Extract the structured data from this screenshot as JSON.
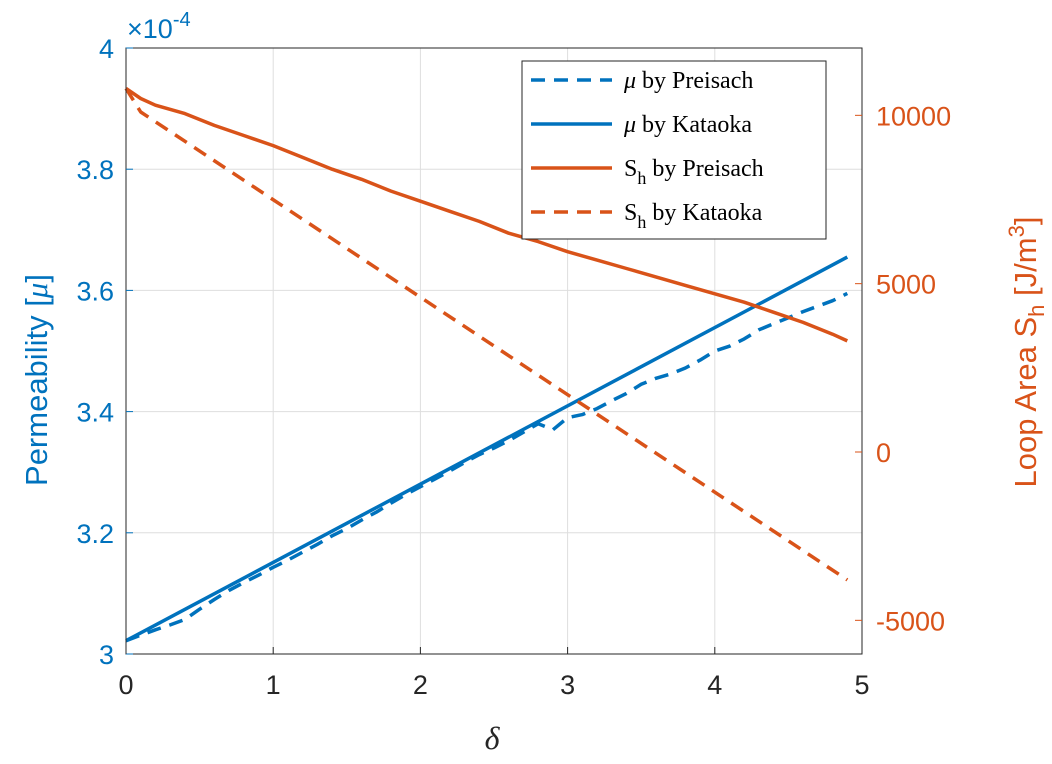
{
  "chart_data": {
    "type": "line",
    "xlabel": "δ",
    "xlim": [
      0,
      5
    ],
    "xticks": [
      "0",
      "1",
      "2",
      "3",
      "4",
      "5"
    ],
    "grid": true,
    "legend_position": "top-right",
    "left_axis": {
      "label_prefix": "Permeability [",
      "label_symbol": "μ",
      "label_suffix": "]",
      "ylim": [
        3.0,
        4.0
      ],
      "ticks": [
        "3",
        "3.2",
        "3.4",
        "3.6",
        "3.8",
        "4"
      ],
      "multiplier_base": "×10",
      "multiplier_exp": "-4",
      "color": "#0072BD"
    },
    "right_axis": {
      "label_text": "Loop Area S",
      "label_sub": "h",
      "label_unit": " [J/m",
      "label_sup": "3",
      "label_close": "]",
      "ylim": [
        -6000,
        12000
      ],
      "ticks": [
        "-5000",
        "0",
        "5000",
        "10000"
      ],
      "color": "#D95319"
    },
    "series": [
      {
        "name_symbol": "μ",
        "name_rest": " by Preisach",
        "axis": "left",
        "color": "#0072BD",
        "style": "dashed",
        "x": [
          0,
          0.1,
          0.2,
          0.3,
          0.4,
          0.5,
          0.6,
          0.7,
          0.8,
          0.9,
          1.0,
          1.1,
          1.2,
          1.3,
          1.4,
          1.5,
          1.6,
          1.7,
          1.8,
          1.9,
          2.0,
          2.1,
          2.2,
          2.3,
          2.4,
          2.5,
          2.6,
          2.7,
          2.8,
          2.9,
          3.0,
          3.1,
          3.2,
          3.3,
          3.4,
          3.5,
          3.6,
          3.7,
          3.8,
          3.9,
          4.0,
          4.1,
          4.2,
          4.3,
          4.4,
          4.5,
          4.6,
          4.7,
          4.8,
          4.9
        ],
        "y": [
          3.022,
          3.031,
          3.04,
          3.048,
          3.057,
          3.074,
          3.09,
          3.105,
          3.118,
          3.13,
          3.143,
          3.155,
          3.168,
          3.181,
          3.195,
          3.207,
          3.221,
          3.234,
          3.249,
          3.263,
          3.276,
          3.289,
          3.302,
          3.316,
          3.329,
          3.34,
          3.352,
          3.366,
          3.38,
          3.37,
          3.39,
          3.395,
          3.405,
          3.418,
          3.43,
          3.445,
          3.455,
          3.462,
          3.472,
          3.485,
          3.5,
          3.508,
          3.52,
          3.535,
          3.545,
          3.555,
          3.565,
          3.574,
          3.583,
          3.595
        ]
      },
      {
        "name_symbol": "μ",
        "name_rest": " by Kataoka",
        "axis": "left",
        "color": "#0072BD",
        "style": "solid",
        "x": [
          0,
          4.9
        ],
        "y": [
          3.022,
          3.655
        ]
      },
      {
        "name_symbol": "S",
        "name_sub": "h",
        "name_rest": " by Preisach",
        "axis": "right",
        "color": "#D95319",
        "style": "solid",
        "x": [
          0,
          0.1,
          0.2,
          0.4,
          0.6,
          0.8,
          1.0,
          1.2,
          1.4,
          1.6,
          1.8,
          2.0,
          2.2,
          2.4,
          2.6,
          2.8,
          3.0,
          3.2,
          3.4,
          3.6,
          3.8,
          4.0,
          4.2,
          4.4,
          4.6,
          4.8,
          4.9
        ],
        "y": [
          10800,
          10500,
          10300,
          10050,
          9700,
          9400,
          9100,
          8750,
          8400,
          8100,
          7750,
          7450,
          7150,
          6850,
          6500,
          6250,
          5950,
          5700,
          5450,
          5200,
          4950,
          4700,
          4450,
          4150,
          3850,
          3500,
          3300
        ]
      },
      {
        "name_symbol": "S",
        "name_sub": "h",
        "name_rest": " by Kataoka",
        "axis": "right",
        "color": "#D95319",
        "style": "dashed",
        "x": [
          0,
          0.1,
          4.9
        ],
        "y": [
          10800,
          10100,
          -3800
        ]
      }
    ]
  }
}
